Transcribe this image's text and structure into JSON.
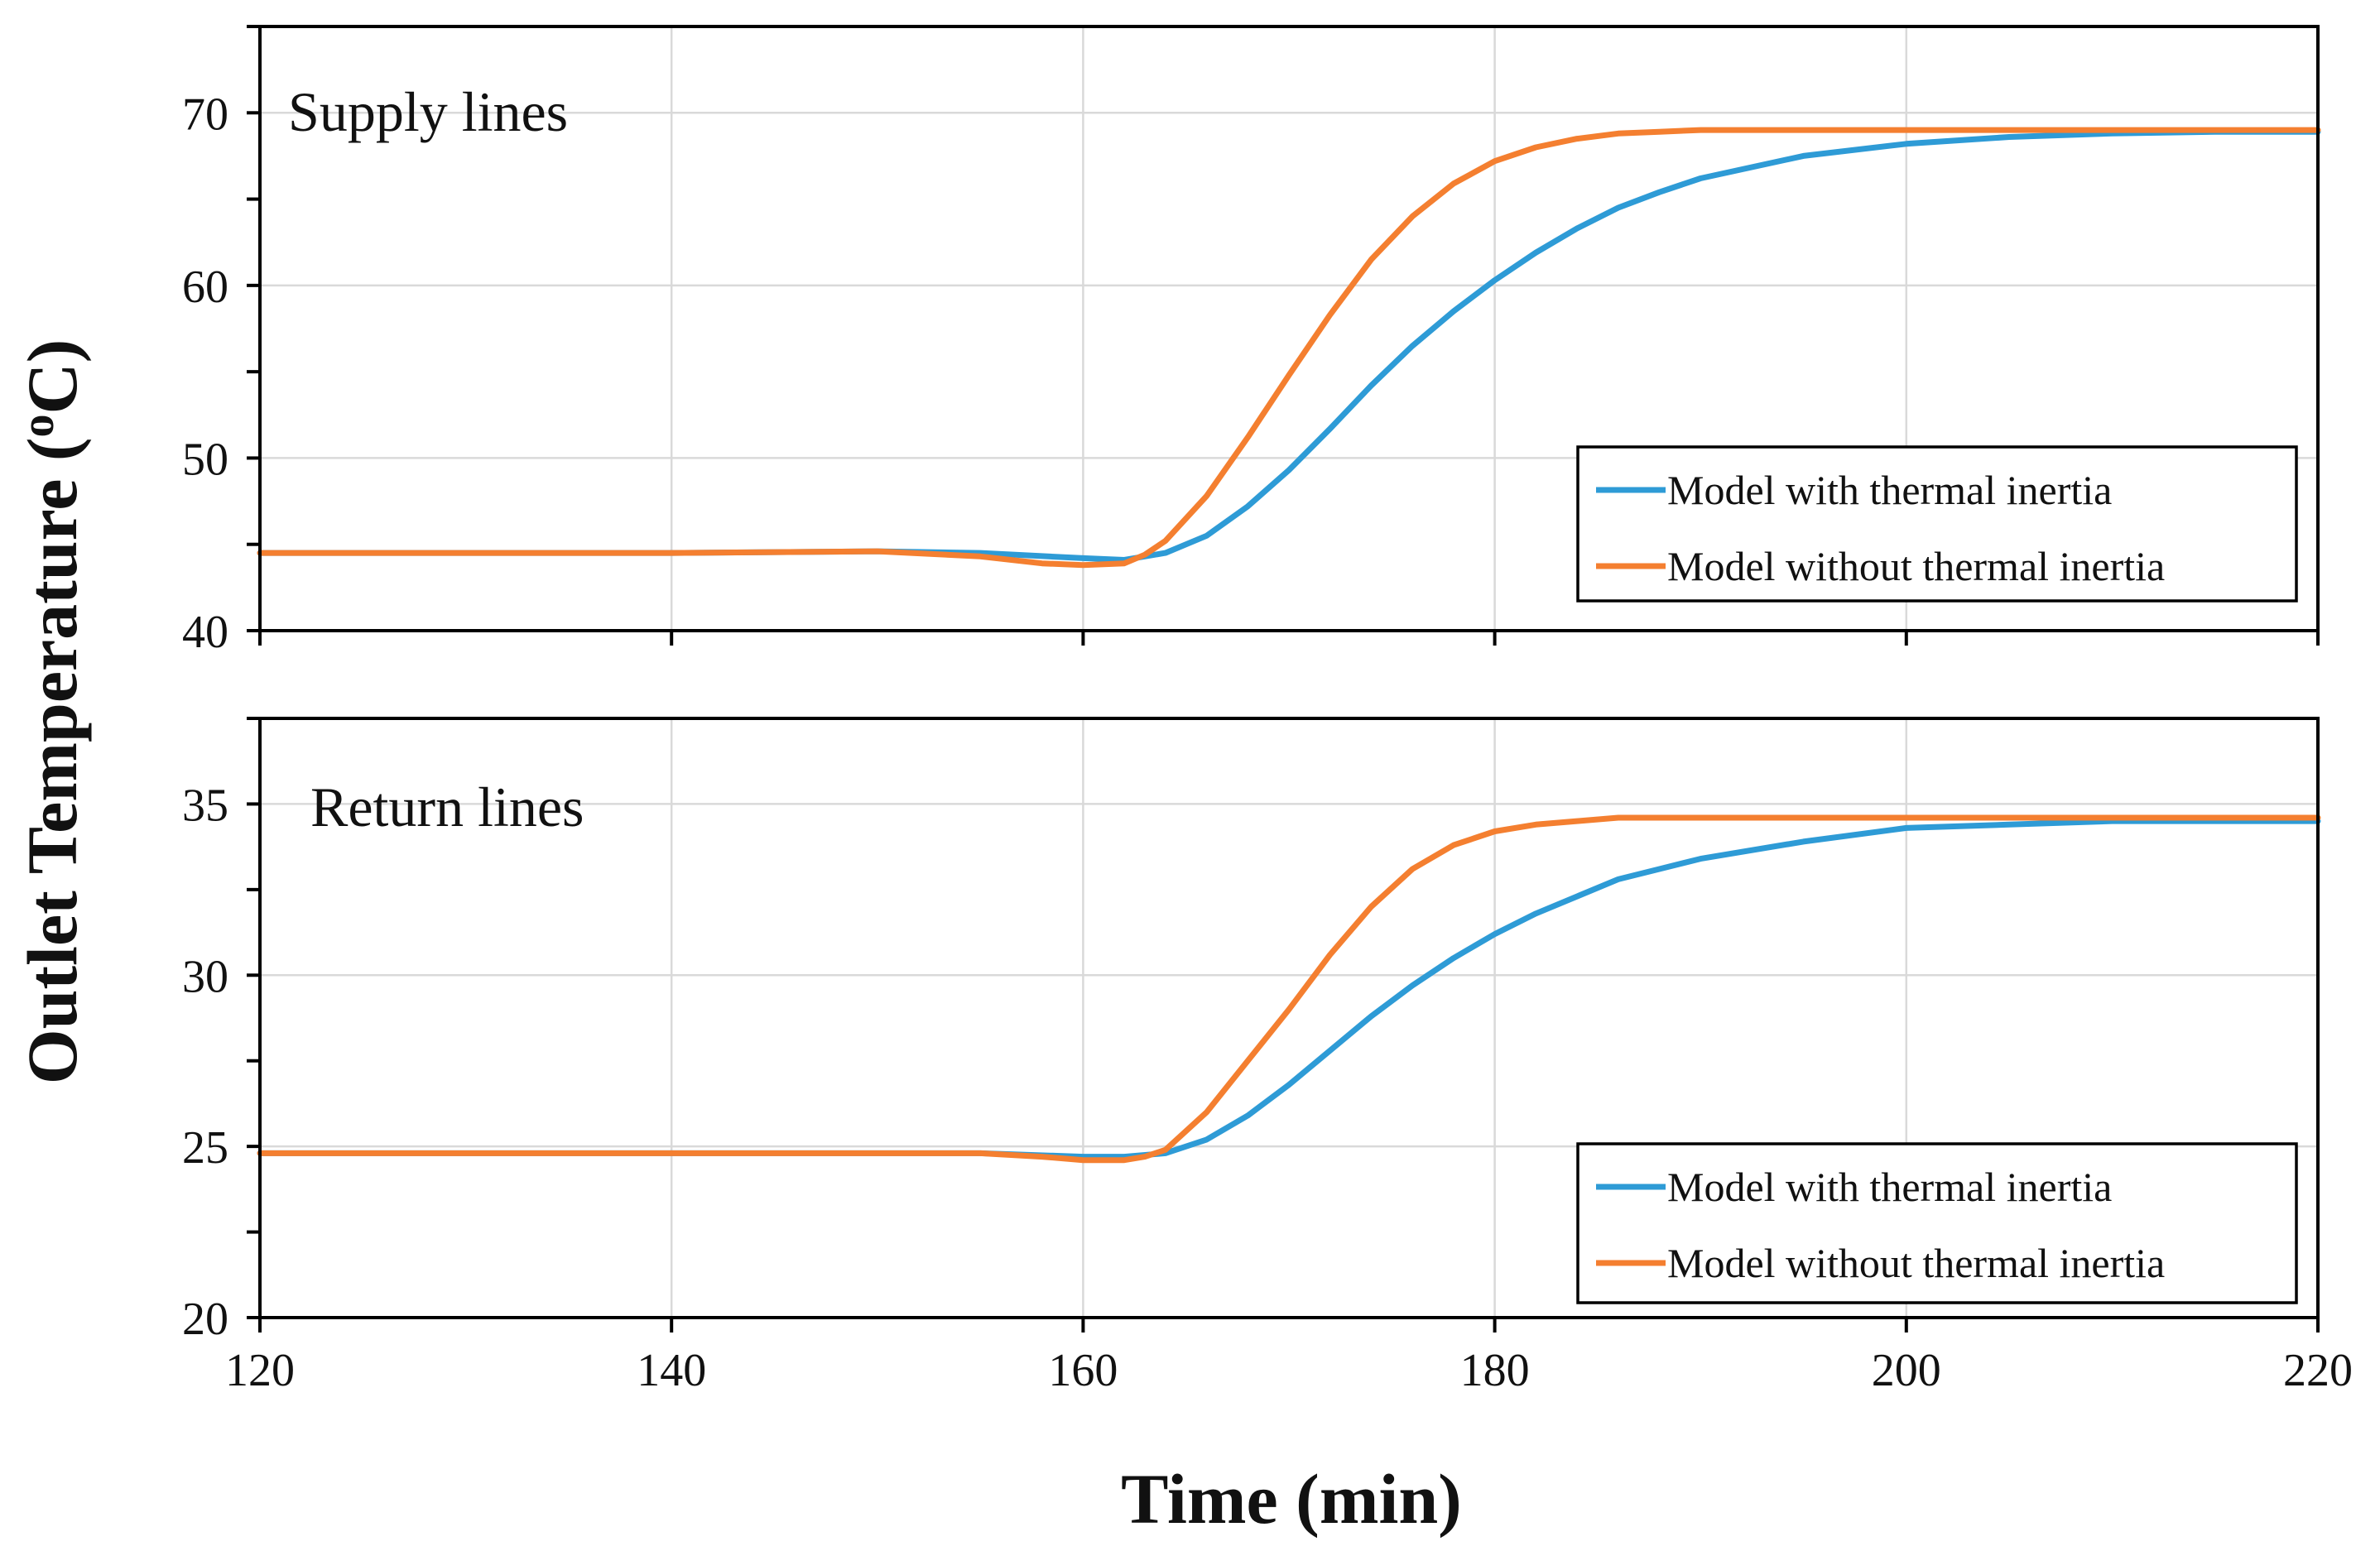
{
  "chart_data": [
    {
      "type": "line",
      "panel_label": "Supply lines",
      "xlim": [
        120,
        220
      ],
      "ylim": [
        40,
        75
      ],
      "x_ticks": [
        120,
        140,
        160,
        180,
        200,
        220
      ],
      "y_ticks": [
        40,
        50,
        60,
        70
      ],
      "grid": true,
      "legend_position": "bottom-right",
      "series": [
        {
          "name": "Model with thermal inertia",
          "color": "#2e9bd6",
          "x": [
            120,
            130,
            140,
            150,
            155,
            160,
            162,
            164,
            166,
            168,
            170,
            172,
            174,
            176,
            178,
            180,
            182,
            184,
            186,
            188,
            190,
            195,
            200,
            205,
            210,
            215,
            220
          ],
          "y": [
            44.5,
            44.5,
            44.5,
            44.6,
            44.5,
            44.2,
            44.1,
            44.5,
            45.5,
            47.2,
            49.3,
            51.7,
            54.2,
            56.5,
            58.5,
            60.3,
            61.9,
            63.3,
            64.5,
            65.4,
            66.2,
            67.5,
            68.2,
            68.6,
            68.8,
            68.9,
            68.9
          ]
        },
        {
          "name": "Model without thermal inertia",
          "color": "#f47f30",
          "x": [
            120,
            130,
            140,
            150,
            155,
            158,
            160,
            162,
            163,
            164,
            166,
            168,
            170,
            172,
            174,
            176,
            178,
            180,
            182,
            184,
            186,
            188,
            190,
            200,
            210,
            220
          ],
          "y": [
            44.5,
            44.5,
            44.5,
            44.6,
            44.3,
            43.9,
            43.8,
            43.9,
            44.4,
            45.2,
            47.8,
            51.2,
            54.8,
            58.3,
            61.5,
            64.0,
            65.9,
            67.2,
            68.0,
            68.5,
            68.8,
            68.9,
            69.0,
            69.0,
            69.0,
            69.0
          ]
        }
      ]
    },
    {
      "type": "line",
      "panel_label": "Return lines",
      "xlim": [
        120,
        220
      ],
      "ylim": [
        20,
        37.5
      ],
      "x_ticks": [
        120,
        140,
        160,
        180,
        200,
        220
      ],
      "x_tick_labels": [
        "120",
        "140",
        "160",
        "180",
        "200",
        "220"
      ],
      "y_ticks": [
        20,
        25,
        30,
        35
      ],
      "grid": true,
      "legend_position": "bottom-right",
      "series": [
        {
          "name": "Model with thermal inertia",
          "color": "#2e9bd6",
          "x": [
            120,
            130,
            140,
            150,
            155,
            160,
            162,
            164,
            166,
            168,
            170,
            172,
            174,
            176,
            178,
            180,
            182,
            184,
            186,
            188,
            190,
            195,
            200,
            205,
            210,
            215,
            220
          ],
          "y": [
            24.8,
            24.8,
            24.8,
            24.8,
            24.8,
            24.7,
            24.7,
            24.8,
            25.2,
            25.9,
            26.8,
            27.8,
            28.8,
            29.7,
            30.5,
            31.2,
            31.8,
            32.3,
            32.8,
            33.1,
            33.4,
            33.9,
            34.3,
            34.4,
            34.5,
            34.5,
            34.5
          ]
        },
        {
          "name": "Model without thermal inertia",
          "color": "#f47f30",
          "x": [
            120,
            130,
            140,
            150,
            155,
            158,
            160,
            162,
            163,
            164,
            166,
            168,
            170,
            172,
            174,
            176,
            178,
            180,
            182,
            184,
            186,
            188,
            190,
            200,
            210,
            220
          ],
          "y": [
            24.8,
            24.8,
            24.8,
            24.8,
            24.8,
            24.7,
            24.6,
            24.6,
            24.7,
            24.9,
            26.0,
            27.5,
            29.0,
            30.6,
            32.0,
            33.1,
            33.8,
            34.2,
            34.4,
            34.5,
            34.6,
            34.6,
            34.6,
            34.6,
            34.6,
            34.6
          ]
        }
      ]
    }
  ],
  "y_axis_title": "Outlet Temperature (",
  "y_axis_unit_sup": "o",
  "y_axis_unit": "C)",
  "x_axis_title": "Time (min)"
}
